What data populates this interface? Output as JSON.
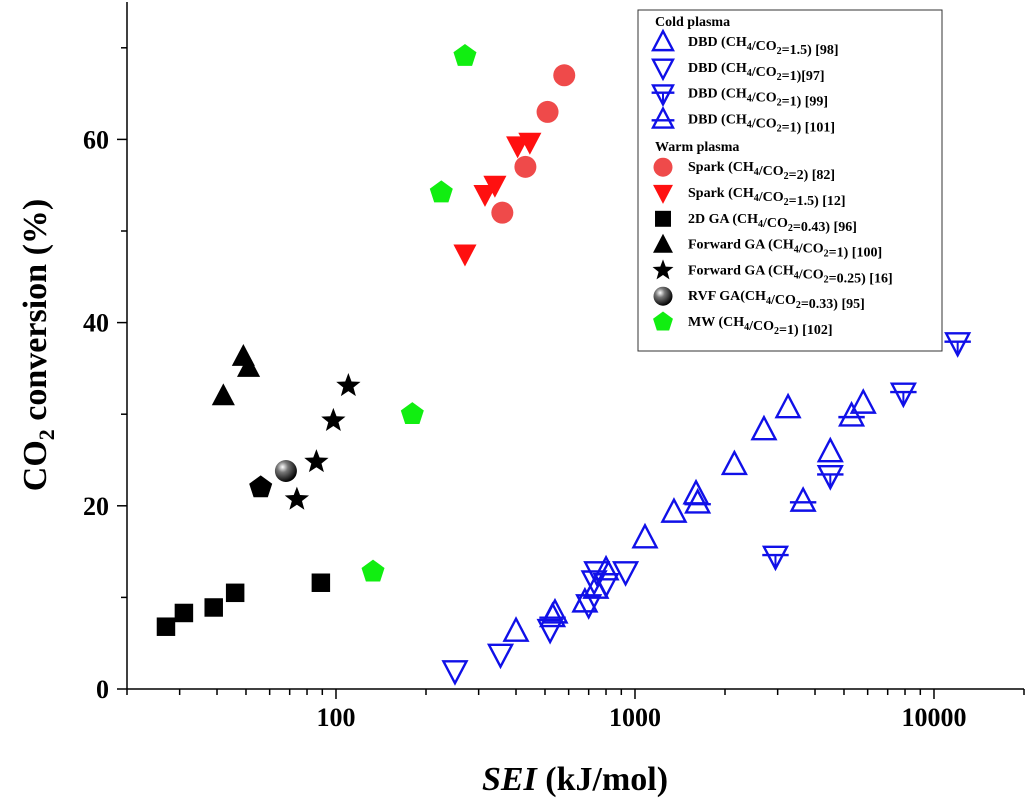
{
  "chart_data": {
    "type": "scatter",
    "x_scale": "log",
    "xlim": [
      20,
      20000
    ],
    "ylim": [
      0,
      75
    ],
    "xlabel_italic": "SEI",
    "xlabel_rest": " (kJ/mol)",
    "ylabel_parts": [
      "CO",
      "2",
      " conversion (%)"
    ],
    "x_ticks": [
      {
        "value": 100,
        "label": "100"
      },
      {
        "value": 1000,
        "label": "1000"
      },
      {
        "value": 10000,
        "label": "10000"
      }
    ],
    "y_ticks": [
      {
        "value": 0,
        "label": "0"
      },
      {
        "value": 20,
        "label": "20"
      },
      {
        "value": 40,
        "label": "40"
      },
      {
        "value": 60,
        "label": "60"
      }
    ],
    "legend_position": "top-right",
    "legend_groups": [
      {
        "title": "Cold plasma",
        "series_indices": [
          0,
          1,
          2,
          3
        ]
      },
      {
        "title": "Warm plasma",
        "series_indices": [
          4,
          5,
          6,
          7,
          8,
          9,
          10
        ]
      }
    ],
    "series": [
      {
        "legend": [
          {
            "t": "DBD (CH"
          },
          {
            "t": "4",
            "sub": true
          },
          {
            "t": "/CO"
          },
          {
            "t": "2",
            "sub": true
          },
          {
            "t": "=1.5) [98]"
          }
        ],
        "marker": "tri-up-open",
        "color": "#1010e8",
        "points": [
          [
            400,
            6.3
          ],
          [
            540,
            8.3
          ],
          [
            680,
            9.5
          ],
          [
            740,
            11.0
          ],
          [
            800,
            13.0
          ],
          [
            1080,
            16.5
          ],
          [
            1350,
            19.3
          ],
          [
            1600,
            21.3
          ],
          [
            2150,
            24.5
          ],
          [
            2700,
            28.3
          ],
          [
            3250,
            30.7
          ],
          [
            5800,
            31.2
          ],
          [
            4500,
            25.9
          ]
        ]
      },
      {
        "legend": [
          {
            "t": "DBD (CH"
          },
          {
            "t": "4",
            "sub": true
          },
          {
            "t": "/CO"
          },
          {
            "t": "2",
            "sub": true
          },
          {
            "t": "=1)[97]"
          }
        ],
        "marker": "tri-down-open",
        "color": "#1010e8",
        "points": [
          [
            250,
            2.0
          ],
          [
            355,
            3.8
          ],
          [
            520,
            6.5
          ],
          [
            700,
            9.2
          ],
          [
            730,
            11.8
          ],
          [
            745,
            12.8
          ],
          [
            930,
            12.8
          ],
          [
            800,
            11.5
          ]
        ]
      },
      {
        "legend": [
          {
            "t": "DBD (CH"
          },
          {
            "t": "4",
            "sub": true
          },
          {
            "t": "/CO"
          },
          {
            "t": "2",
            "sub": true
          },
          {
            "t": "=1) [99]"
          }
        ],
        "marker": "tri-down-bar",
        "color": "#1010e8",
        "points": [
          [
            2950,
            14.5
          ],
          [
            4500,
            23.3
          ],
          [
            7900,
            32.3
          ],
          [
            12000,
            37.8
          ]
        ]
      },
      {
        "legend": [
          {
            "t": "DBD (CH"
          },
          {
            "t": "4",
            "sub": true
          },
          {
            "t": "/CO"
          },
          {
            "t": "2",
            "sub": true
          },
          {
            "t": "=1) [101]"
          }
        ],
        "marker": "tri-up-bar",
        "color": "#1010e8",
        "points": [
          [
            530,
            7.9
          ],
          [
            1620,
            20.3
          ],
          [
            5300,
            29.8
          ],
          [
            3650,
            20.5
          ]
        ]
      },
      {
        "legend": [
          {
            "t": "Spark (CH"
          },
          {
            "t": "4",
            "sub": true
          },
          {
            "t": "/CO"
          },
          {
            "t": "2",
            "sub": true
          },
          {
            "t": "=2) [82]"
          }
        ],
        "marker": "circle",
        "color": "#ef4a4a",
        "points": [
          [
            360,
            52.0
          ],
          [
            430,
            57.0
          ],
          [
            510,
            63.0
          ],
          [
            580,
            67.0
          ]
        ]
      },
      {
        "legend": [
          {
            "t": "Spark (CH"
          },
          {
            "t": "4",
            "sub": true
          },
          {
            "t": "/CO"
          },
          {
            "t": "2",
            "sub": true
          },
          {
            "t": "=1.5) [12]"
          }
        ],
        "marker": "tri-down",
        "color": "#ff1010",
        "points": [
          [
            270,
            47.5
          ],
          [
            315,
            54.0
          ],
          [
            340,
            55.0
          ],
          [
            405,
            59.3
          ],
          [
            445,
            59.7
          ]
        ]
      },
      {
        "legend": [
          {
            "t": "2D GA (CH"
          },
          {
            "t": "4",
            "sub": true
          },
          {
            "t": "/CO"
          },
          {
            "t": "2",
            "sub": true
          },
          {
            "t": "=0.43) [96]"
          }
        ],
        "marker": "square",
        "color": "#000000",
        "points": [
          [
            27,
            6.8
          ],
          [
            31,
            8.3
          ],
          [
            39,
            8.9
          ],
          [
            46,
            10.5
          ],
          [
            89,
            11.6
          ]
        ]
      },
      {
        "legend": [
          {
            "t": "Forward GA (CH"
          },
          {
            "t": "4",
            "sub": true
          },
          {
            "t": "/CO"
          },
          {
            "t": "2",
            "sub": true
          },
          {
            "t": "=1) [100]"
          }
        ],
        "marker": "tri-up",
        "color": "#000000",
        "points": [
          [
            42,
            32.0
          ],
          [
            49,
            36.3
          ],
          [
            51,
            35.1
          ]
        ]
      },
      {
        "legend": [
          {
            "t": "Forward GA (CH"
          },
          {
            "t": "4",
            "sub": true
          },
          {
            "t": "/CO"
          },
          {
            "t": "2",
            "sub": true
          },
          {
            "t": "=0.25) [16]"
          }
        ],
        "marker": "star",
        "color": "#000000",
        "points": [
          [
            74,
            20.7
          ],
          [
            86,
            24.8
          ],
          [
            98,
            29.3
          ],
          [
            110,
            33.1
          ]
        ]
      },
      {
        "legend": [
          {
            "t": "RVF GA(CH"
          },
          {
            "t": "4",
            "sub": true
          },
          {
            "t": "/CO"
          },
          {
            "t": "2",
            "sub": true
          },
          {
            "t": "=0.33)  [95]"
          }
        ],
        "marker": "sphere",
        "color": "#000000",
        "points": [
          [
            68,
            23.8
          ]
        ]
      },
      {
        "legend": [
          {
            "t": "MW (CH"
          },
          {
            "t": "4",
            "sub": true
          },
          {
            "t": "/CO"
          },
          {
            "t": "2",
            "sub": true
          },
          {
            "t": "=1) [102]"
          }
        ],
        "marker": "pentagon",
        "color": "#11ee11",
        "points": [
          [
            270,
            69.1
          ],
          [
            225,
            54.2
          ],
          [
            180,
            30.0
          ],
          [
            133,
            12.8
          ]
        ]
      }
    ],
    "extra_points": [
      {
        "marker": "pentagon",
        "color": "#000000",
        "x": 56,
        "y": 22.0
      }
    ]
  }
}
